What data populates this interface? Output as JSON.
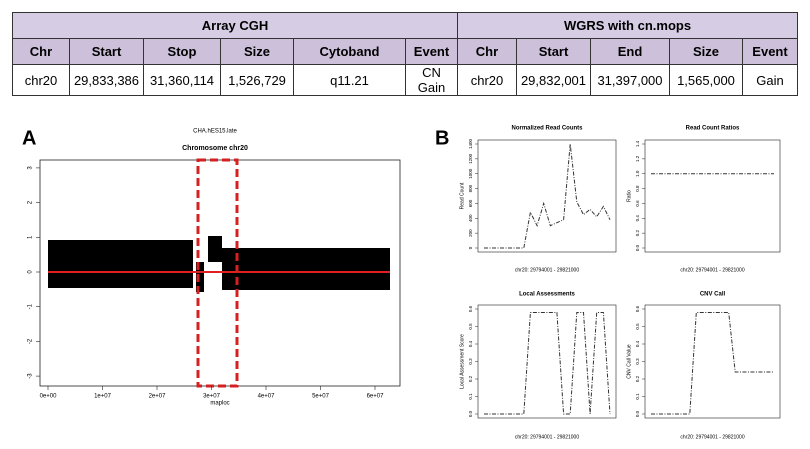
{
  "table": {
    "groups": [
      "Array CGH",
      "WGRS with cn.mops"
    ],
    "header": [
      "Chr",
      "Start",
      "Stop",
      "Size",
      "Cytoband",
      "Event",
      "Chr",
      "Start",
      "End",
      "Size",
      "Event"
    ],
    "rows": [
      [
        "chr20",
        "29,833,386",
        "31,360,114",
        "1,526,729",
        "q11.21",
        "CN Gain",
        "chr20",
        "29,832,001",
        "31,397,000",
        "1,565,000",
        "Gain"
      ]
    ]
  },
  "panel_a": {
    "label": "A",
    "subtitle": "CHA.hES15.late",
    "title": "Chromosome chr20",
    "xlabel": "maploc",
    "xticks": [
      "0e+00",
      "1e+07",
      "2e+07",
      "3e+07",
      "4e+07",
      "5e+07",
      "6e+07"
    ],
    "yticks": [
      3,
      2,
      1,
      0,
      -1,
      -2,
      -3
    ]
  },
  "panel_b": {
    "label": "B",
    "plots": [
      {
        "title": "Normalized Read Counts",
        "xlabel": "chr20: 29794001 - 29821000",
        "ylabel": "Read Count",
        "ylim": [
          0,
          1400
        ],
        "yticks": [
          0,
          200,
          400,
          600,
          800,
          1000,
          1200,
          1400
        ],
        "values": [
          0,
          0,
          0,
          0,
          0,
          0,
          0,
          480,
          300,
          600,
          300,
          340,
          380,
          1400,
          620,
          450,
          520,
          420,
          560,
          380
        ]
      },
      {
        "title": "Read Count Ratios",
        "xlabel": "chr20: 29794001 - 29821000",
        "ylabel": "Ratio",
        "ylim": [
          0,
          1.4
        ],
        "yticks": [
          {
            "value": 0,
            "label": "0.0"
          },
          {
            "value": 0.2,
            "label": "0.2"
          },
          {
            "value": 0.4,
            "label": "0.4"
          },
          {
            "value": 0.6,
            "label": "0.6"
          },
          {
            "value": 0.8,
            "label": "0.8"
          },
          {
            "value": 1,
            "label": "1.0"
          },
          {
            "value": 1.2,
            "label": "1.2"
          },
          {
            "value": 1.4,
            "label": "1.4"
          }
        ],
        "values": [
          1,
          1,
          1,
          1,
          1,
          1,
          1,
          1,
          1,
          1,
          1,
          1,
          1,
          1,
          1,
          1,
          1,
          1,
          1,
          1
        ]
      },
      {
        "title": "Local Assessments",
        "xlabel": "chr20: 29794001 - 29821000",
        "ylabel": "Local Assessment Score",
        "ylim": [
          0,
          0.6
        ],
        "yticks": [
          {
            "value": 0,
            "label": "0.0"
          },
          {
            "value": 0.1,
            "label": "0.1"
          },
          {
            "value": 0.2,
            "label": "0.2"
          },
          {
            "value": 0.3,
            "label": "0.3"
          },
          {
            "value": 0.4,
            "label": "0.4"
          },
          {
            "value": 0.5,
            "label": "0.5"
          },
          {
            "value": 0.6,
            "label": "0.6"
          }
        ],
        "values": [
          0,
          0,
          0,
          0,
          0,
          0,
          0,
          0.58,
          0.58,
          0.58,
          0.58,
          0.58,
          0,
          0,
          0.58,
          0.58,
          0,
          0.58,
          0.58,
          0
        ]
      },
      {
        "title": "CNV Call",
        "xlabel": "chr20: 29794001 - 29821000",
        "ylabel": "CNV Call Value",
        "ylim": [
          0,
          0.6
        ],
        "yticks": [
          {
            "value": 0,
            "label": "0.0"
          },
          {
            "value": 0.1,
            "label": "0.1"
          },
          {
            "value": 0.2,
            "label": "0.2"
          },
          {
            "value": 0.3,
            "label": "0.3"
          },
          {
            "value": 0.4,
            "label": "0.4"
          },
          {
            "value": 0.5,
            "label": "0.5"
          },
          {
            "value": 0.6,
            "label": "0.6"
          }
        ],
        "values": [
          0,
          0,
          0,
          0,
          0,
          0,
          0,
          0.58,
          0.58,
          0.58,
          0.58,
          0.58,
          0.58,
          0.24,
          0.24,
          0.24,
          0.24,
          0.24,
          0.24,
          0.24
        ]
      }
    ]
  }
}
